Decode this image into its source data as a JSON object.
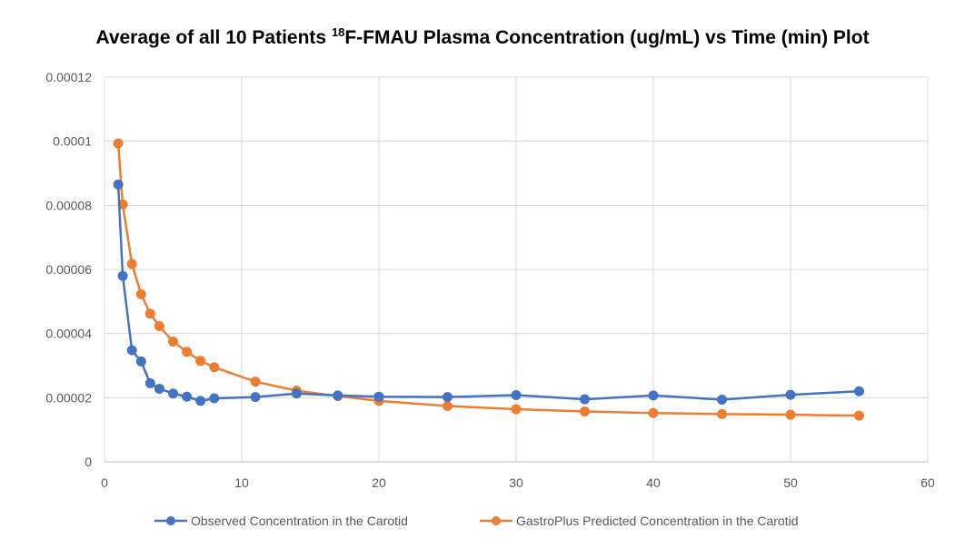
{
  "chart_data": {
    "type": "line",
    "title_prefix": "Average of all 10 Patients ",
    "title_sup": "18",
    "title_suffix": "F-FMAU Plasma Concentration (ug/mL) vs Time (min) Plot",
    "xlim": [
      0,
      60
    ],
    "ylim": [
      0,
      0.00012
    ],
    "x_ticks": [
      "0",
      "10",
      "20",
      "30",
      "40",
      "50",
      "60"
    ],
    "y_ticks": [
      "0",
      "0.00002",
      "0.00004",
      "0.00006",
      "0.00008",
      "0.0001",
      "0.00012"
    ],
    "grid": true,
    "legend_position": "bottom",
    "series": [
      {
        "name": "Observed Concentration in the Carotid",
        "color": "#4472C4",
        "x": [
          1,
          1.33,
          2,
          2.67,
          3.33,
          4,
          5,
          6,
          7,
          8,
          11,
          14,
          17,
          20,
          25,
          30,
          35,
          40,
          45,
          50,
          55
        ],
        "y": [
          8.65e-05,
          5.8e-05,
          3.48e-05,
          3.13e-05,
          2.45e-05,
          2.28e-05,
          2.13e-05,
          2.03e-05,
          1.9e-05,
          1.98e-05,
          2.02e-05,
          2.13e-05,
          2.07e-05,
          2.03e-05,
          2.02e-05,
          2.08e-05,
          1.95e-05,
          2.07e-05,
          1.94e-05,
          2.09e-05,
          2.2e-05
        ]
      },
      {
        "name": "GastroPlus Predicted Concentration in the Carotid",
        "color": "#ED7D31",
        "x": [
          1,
          1.33,
          2,
          2.67,
          3.33,
          4,
          5,
          6,
          7,
          8,
          11,
          14,
          17,
          20,
          25,
          30,
          35,
          40,
          45,
          50,
          55
        ],
        "y": [
          9.93e-05,
          8.03e-05,
          6.17e-05,
          5.23e-05,
          4.62e-05,
          4.23e-05,
          3.75e-05,
          3.43e-05,
          3.15e-05,
          2.95e-05,
          2.5e-05,
          2.22e-05,
          2.05e-05,
          1.9e-05,
          1.74e-05,
          1.64e-05,
          1.57e-05,
          1.52e-05,
          1.49e-05,
          1.47e-05,
          1.44e-05
        ]
      }
    ]
  }
}
